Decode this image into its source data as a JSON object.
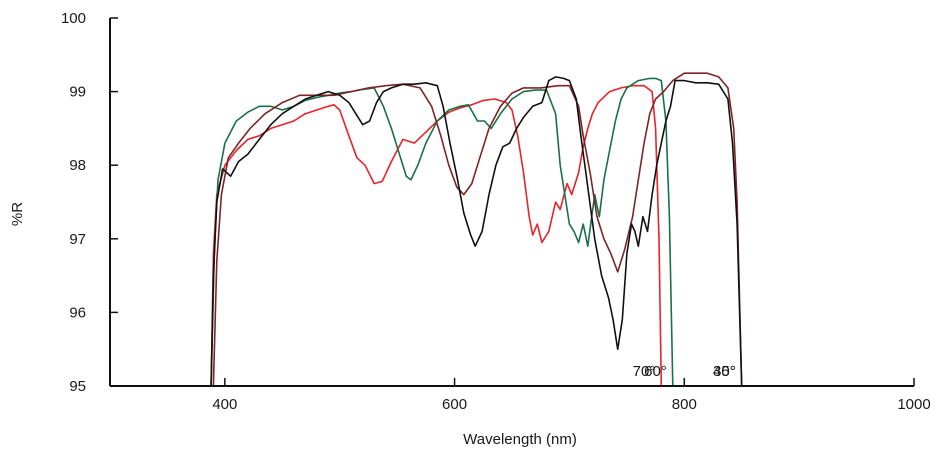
{
  "chart_data": {
    "type": "line",
    "title": "",
    "xlabel": "Wavelength (nm)",
    "ylabel": "%R",
    "xlim": [
      300,
      1000
    ],
    "ylim": [
      95,
      100
    ],
    "x_ticks": [
      400,
      600,
      800,
      1000
    ],
    "y_ticks": [
      95,
      96,
      97,
      98,
      99,
      100
    ],
    "grid": false,
    "legend": "none",
    "series": [
      {
        "color": "#e8232a",
        "label": "70°",
        "points": [
          [
            388,
            95
          ],
          [
            390,
            96.8
          ],
          [
            393,
            97.6
          ],
          [
            400,
            98.0
          ],
          [
            410,
            98.2
          ],
          [
            420,
            98.35
          ],
          [
            430,
            98.4
          ],
          [
            440,
            98.5
          ],
          [
            450,
            98.55
          ],
          [
            460,
            98.6
          ],
          [
            470,
            98.7
          ],
          [
            480,
            98.75
          ],
          [
            490,
            98.8
          ],
          [
            495,
            98.82
          ],
          [
            500,
            98.75
          ],
          [
            508,
            98.4
          ],
          [
            515,
            98.1
          ],
          [
            522,
            98.0
          ],
          [
            530,
            97.75
          ],
          [
            537,
            97.78
          ],
          [
            545,
            98.05
          ],
          [
            555,
            98.35
          ],
          [
            565,
            98.3
          ],
          [
            575,
            98.45
          ],
          [
            585,
            98.6
          ],
          [
            595,
            98.72
          ],
          [
            605,
            98.78
          ],
          [
            615,
            98.82
          ],
          [
            625,
            98.88
          ],
          [
            635,
            98.9
          ],
          [
            645,
            98.85
          ],
          [
            650,
            98.75
          ],
          [
            655,
            98.4
          ],
          [
            660,
            97.9
          ],
          [
            665,
            97.3
          ],
          [
            668,
            97.05
          ],
          [
            672,
            97.2
          ],
          [
            676,
            96.95
          ],
          [
            682,
            97.1
          ],
          [
            688,
            97.5
          ],
          [
            692,
            97.4
          ],
          [
            698,
            97.75
          ],
          [
            702,
            97.6
          ],
          [
            708,
            97.9
          ],
          [
            712,
            98.25
          ],
          [
            716,
            98.5
          ],
          [
            720,
            98.7
          ],
          [
            725,
            98.85
          ],
          [
            735,
            99.0
          ],
          [
            745,
            99.05
          ],
          [
            755,
            99.08
          ],
          [
            765,
            99.08
          ],
          [
            772,
            99.0
          ],
          [
            775,
            98.5
          ],
          [
            778,
            97.0
          ],
          [
            780,
            95
          ]
        ]
      },
      {
        "color": "#1a7048",
        "label": "60°",
        "points": [
          [
            388,
            95
          ],
          [
            391,
            96.9
          ],
          [
            394,
            97.8
          ],
          [
            400,
            98.3
          ],
          [
            410,
            98.6
          ],
          [
            420,
            98.72
          ],
          [
            430,
            98.8
          ],
          [
            440,
            98.8
          ],
          [
            450,
            98.75
          ],
          [
            460,
            98.8
          ],
          [
            470,
            98.88
          ],
          [
            480,
            98.92
          ],
          [
            490,
            98.95
          ],
          [
            500,
            98.98
          ],
          [
            510,
            99.0
          ],
          [
            520,
            99.03
          ],
          [
            530,
            99.05
          ],
          [
            538,
            98.8
          ],
          [
            545,
            98.5
          ],
          [
            552,
            98.15
          ],
          [
            558,
            97.85
          ],
          [
            562,
            97.8
          ],
          [
            568,
            98.0
          ],
          [
            575,
            98.3
          ],
          [
            585,
            98.6
          ],
          [
            595,
            98.75
          ],
          [
            605,
            98.8
          ],
          [
            612,
            98.82
          ],
          [
            620,
            98.6
          ],
          [
            626,
            98.6
          ],
          [
            632,
            98.5
          ],
          [
            640,
            98.7
          ],
          [
            650,
            98.9
          ],
          [
            660,
            99.0
          ],
          [
            670,
            99.02
          ],
          [
            680,
            99.02
          ],
          [
            688,
            98.7
          ],
          [
            692,
            98.0
          ],
          [
            696,
            97.6
          ],
          [
            700,
            97.2
          ],
          [
            704,
            97.1
          ],
          [
            708,
            96.95
          ],
          [
            712,
            97.2
          ],
          [
            716,
            96.9
          ],
          [
            722,
            97.6
          ],
          [
            726,
            97.3
          ],
          [
            730,
            97.8
          ],
          [
            735,
            98.2
          ],
          [
            740,
            98.6
          ],
          [
            745,
            98.9
          ],
          [
            750,
            99.05
          ],
          [
            760,
            99.15
          ],
          [
            770,
            99.18
          ],
          [
            775,
            99.18
          ],
          [
            780,
            99.15
          ],
          [
            784,
            98.6
          ],
          [
            787,
            97.3
          ],
          [
            790,
            95
          ]
        ]
      },
      {
        "color": "#7d2525",
        "label": "45°",
        "points": [
          [
            390,
            95
          ],
          [
            393,
            96.7
          ],
          [
            397,
            97.6
          ],
          [
            403,
            98.1
          ],
          [
            412,
            98.3
          ],
          [
            422,
            98.5
          ],
          [
            435,
            98.7
          ],
          [
            450,
            98.85
          ],
          [
            465,
            98.95
          ],
          [
            480,
            98.95
          ],
          [
            495,
            98.95
          ],
          [
            510,
            99.0
          ],
          [
            525,
            99.05
          ],
          [
            540,
            99.08
          ],
          [
            555,
            99.1
          ],
          [
            570,
            99.05
          ],
          [
            580,
            98.8
          ],
          [
            588,
            98.4
          ],
          [
            595,
            98.0
          ],
          [
            602,
            97.7
          ],
          [
            608,
            97.6
          ],
          [
            615,
            97.75
          ],
          [
            622,
            98.1
          ],
          [
            630,
            98.5
          ],
          [
            640,
            98.8
          ],
          [
            650,
            98.98
          ],
          [
            660,
            99.05
          ],
          [
            675,
            99.05
          ],
          [
            690,
            99.08
          ],
          [
            700,
            99.08
          ],
          [
            708,
            98.8
          ],
          [
            712,
            98.4
          ],
          [
            718,
            97.9
          ],
          [
            724,
            97.3
          ],
          [
            730,
            97.0
          ],
          [
            736,
            96.8
          ],
          [
            742,
            96.55
          ],
          [
            748,
            96.85
          ],
          [
            755,
            97.3
          ],
          [
            760,
            97.8
          ],
          [
            765,
            98.3
          ],
          [
            770,
            98.7
          ],
          [
            775,
            98.9
          ],
          [
            782,
            99.0
          ],
          [
            790,
            99.15
          ],
          [
            800,
            99.25
          ],
          [
            810,
            99.25
          ],
          [
            820,
            99.25
          ],
          [
            830,
            99.2
          ],
          [
            838,
            99.05
          ],
          [
            843,
            98.5
          ],
          [
            846,
            97.5
          ],
          [
            850,
            95
          ]
        ]
      },
      {
        "color": "#111111",
        "label": "30°",
        "points": [
          [
            388,
            95
          ],
          [
            390,
            96.5
          ],
          [
            393,
            97.5
          ],
          [
            398,
            97.95
          ],
          [
            405,
            97.85
          ],
          [
            412,
            98.05
          ],
          [
            420,
            98.15
          ],
          [
            430,
            98.35
          ],
          [
            440,
            98.55
          ],
          [
            450,
            98.7
          ],
          [
            460,
            98.8
          ],
          [
            470,
            98.9
          ],
          [
            480,
            98.95
          ],
          [
            490,
            99.0
          ],
          [
            500,
            98.95
          ],
          [
            508,
            98.85
          ],
          [
            514,
            98.7
          ],
          [
            520,
            98.55
          ],
          [
            526,
            98.6
          ],
          [
            532,
            98.85
          ],
          [
            538,
            99.0
          ],
          [
            545,
            99.05
          ],
          [
            555,
            99.1
          ],
          [
            565,
            99.1
          ],
          [
            575,
            99.12
          ],
          [
            585,
            99.08
          ],
          [
            590,
            98.8
          ],
          [
            596,
            98.3
          ],
          [
            602,
            97.85
          ],
          [
            608,
            97.35
          ],
          [
            614,
            97.05
          ],
          [
            618,
            96.9
          ],
          [
            624,
            97.1
          ],
          [
            630,
            97.6
          ],
          [
            636,
            98.0
          ],
          [
            642,
            98.25
          ],
          [
            648,
            98.3
          ],
          [
            654,
            98.5
          ],
          [
            660,
            98.65
          ],
          [
            668,
            98.8
          ],
          [
            676,
            98.85
          ],
          [
            682,
            99.15
          ],
          [
            688,
            99.2
          ],
          [
            695,
            99.18
          ],
          [
            700,
            99.15
          ],
          [
            706,
            98.9
          ],
          [
            710,
            98.4
          ],
          [
            716,
            97.7
          ],
          [
            722,
            97.0
          ],
          [
            728,
            96.5
          ],
          [
            734,
            96.2
          ],
          [
            738,
            95.9
          ],
          [
            742,
            95.5
          ],
          [
            746,
            95.9
          ],
          [
            750,
            96.8
          ],
          [
            754,
            97.2
          ],
          [
            757,
            97.1
          ],
          [
            760,
            96.9
          ],
          [
            764,
            97.3
          ],
          [
            768,
            97.1
          ],
          [
            772,
            97.6
          ],
          [
            776,
            98.0
          ],
          [
            780,
            98.3
          ],
          [
            784,
            98.6
          ],
          [
            788,
            98.8
          ],
          [
            792,
            99.15
          ],
          [
            800,
            99.15
          ],
          [
            810,
            99.12
          ],
          [
            820,
            99.12
          ],
          [
            830,
            99.1
          ],
          [
            838,
            98.9
          ],
          [
            842,
            98.3
          ],
          [
            846,
            97.2
          ],
          [
            850,
            95
          ]
        ]
      }
    ]
  }
}
